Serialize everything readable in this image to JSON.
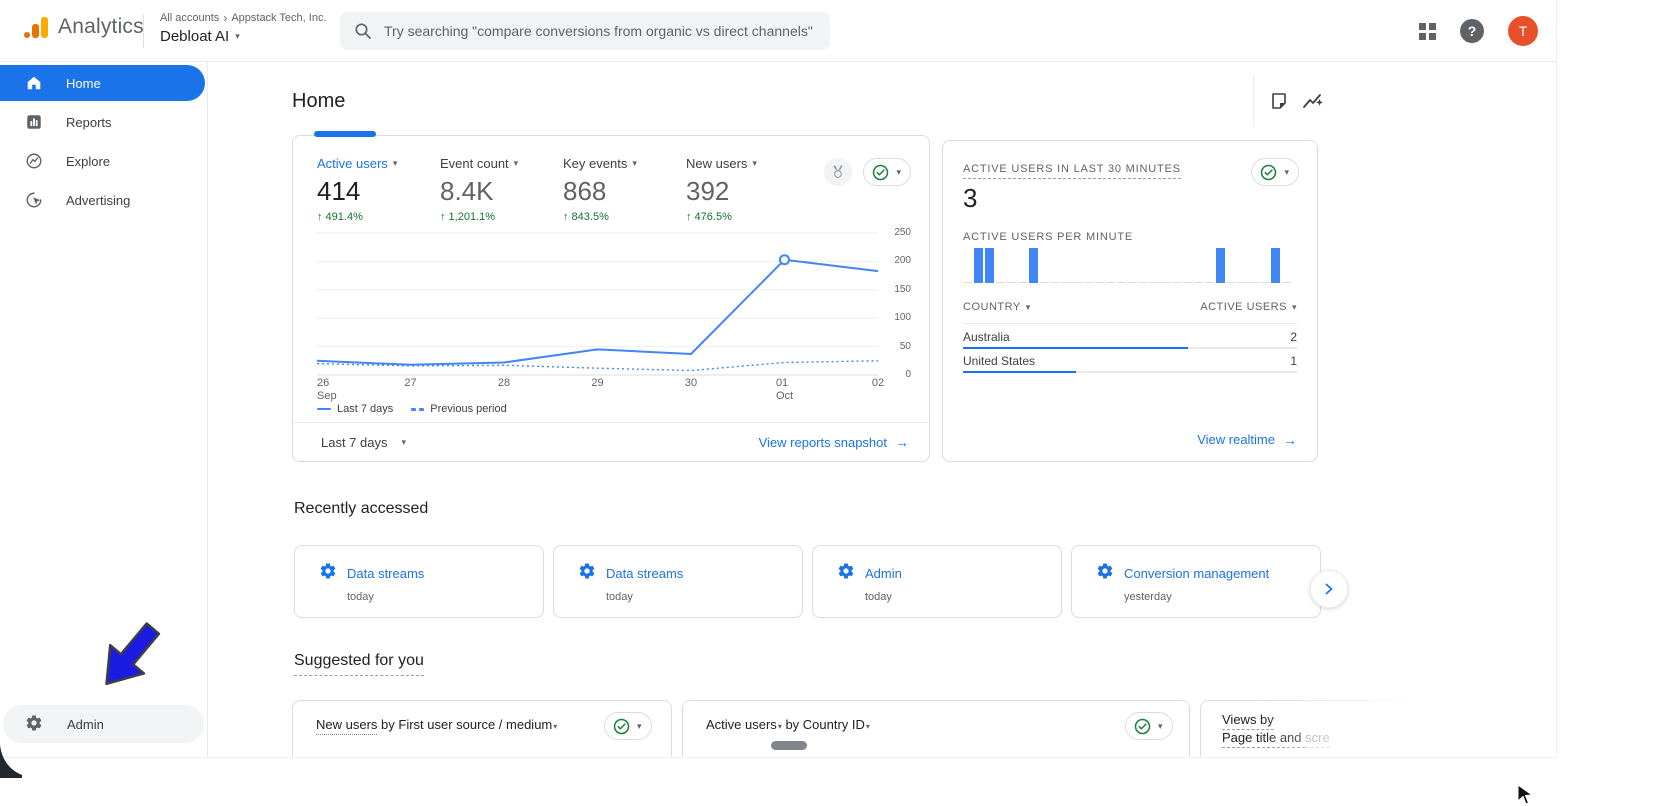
{
  "header": {
    "product": "Analytics",
    "breadcrumb": {
      "all_accounts": "All accounts",
      "separator": "›",
      "org": "Appstack Tech, Inc."
    },
    "property": "Debloat AI",
    "search_placeholder": "Try searching \"compare conversions from organic vs direct channels\"",
    "avatar_initial": "T"
  },
  "sidebar": {
    "items": [
      {
        "label": "Home",
        "icon": "home",
        "selected": true
      },
      {
        "label": "Reports",
        "icon": "reports",
        "selected": false
      },
      {
        "label": "Explore",
        "icon": "explore",
        "selected": false
      },
      {
        "label": "Advertising",
        "icon": "advertising",
        "selected": false
      }
    ],
    "admin": "Admin"
  },
  "page": {
    "title": "Home"
  },
  "overview": {
    "metrics": [
      {
        "label": "Active users",
        "value": "414",
        "delta": "491.4%",
        "selected": true
      },
      {
        "label": "Event count",
        "value": "8.4K",
        "delta": "1,201.1%",
        "selected": false
      },
      {
        "label": "Key events",
        "value": "868",
        "delta": "843.5%",
        "selected": false
      },
      {
        "label": "New users",
        "value": "392",
        "delta": "476.5%",
        "selected": false
      }
    ],
    "legend": [
      {
        "label": "Last 7 days",
        "style": "solid"
      },
      {
        "label": "Previous period",
        "style": "dashed"
      }
    ],
    "range_label": "Last 7 days",
    "snapshot_link": "View reports snapshot"
  },
  "realtime": {
    "title": "ACTIVE USERS IN LAST 30 MINUTES",
    "count": "3",
    "per_minute_label": "ACTIVE USERS PER MINUTE",
    "table": {
      "col_country": "COUNTRY",
      "col_users": "ACTIVE USERS",
      "rows": [
        {
          "country": "Australia",
          "users": 2
        },
        {
          "country": "United States",
          "users": 1
        }
      ]
    },
    "realtime_link": "View realtime"
  },
  "recently_accessed": {
    "title": "Recently accessed",
    "cards": [
      {
        "label": "Data streams",
        "time": "today"
      },
      {
        "label": "Data streams",
        "time": "today"
      },
      {
        "label": "Admin",
        "time": "today"
      },
      {
        "label": "Conversion management",
        "time": "yesterday"
      }
    ]
  },
  "suggested": {
    "title": "Suggested for you",
    "card_new_users": {
      "underlined": "New users",
      "rest": " by First user source / medium"
    },
    "card_active_users": {
      "metric": "Active users",
      "rest": " by Country ID"
    },
    "card_views": {
      "line1": "Views by",
      "line2": "Page title and ",
      "line2_faded": "scre"
    }
  },
  "chart_data": [
    {
      "type": "line",
      "title": "Active users trend",
      "x": [
        "26 Sep",
        "27",
        "28",
        "29",
        "30",
        "01 Oct",
        "02"
      ],
      "x_labels": [
        {
          "top": "26",
          "sub": "Sep"
        },
        {
          "top": "27"
        },
        {
          "top": "28"
        },
        {
          "top": "29"
        },
        {
          "top": "30"
        },
        {
          "top": "01",
          "sub": "Oct"
        },
        {
          "top": "02"
        }
      ],
      "series": [
        {
          "name": "Last 7 days",
          "style": "solid",
          "values": [
            25,
            18,
            22,
            45,
            37,
            203,
            183
          ]
        },
        {
          "name": "Previous period",
          "style": "dashed",
          "values": [
            20,
            16,
            17,
            12,
            8,
            22,
            25
          ]
        }
      ],
      "ylim": [
        0,
        250
      ],
      "yticks": [
        0,
        50,
        100,
        150,
        200,
        250
      ],
      "marker": {
        "series": 0,
        "index": 5
      },
      "grid": true,
      "legend_position": "bottom-left"
    },
    {
      "type": "bar",
      "title": "Active users per minute",
      "slots": 30,
      "active_minutes": [
        1,
        2,
        6,
        23,
        28
      ],
      "bar_value": 1,
      "ylim": [
        0,
        1
      ]
    }
  ],
  "colors": {
    "accent_blue": "#1a73e8",
    "chart_blue": "#4285f4",
    "delta_green": "#137333",
    "check_green": "#188038",
    "avatar_orange": "#E8502A",
    "logo_amber": "#F9AB00",
    "logo_orange": "#E37400",
    "annotation_arrow_blue": "#1B1BE4"
  }
}
